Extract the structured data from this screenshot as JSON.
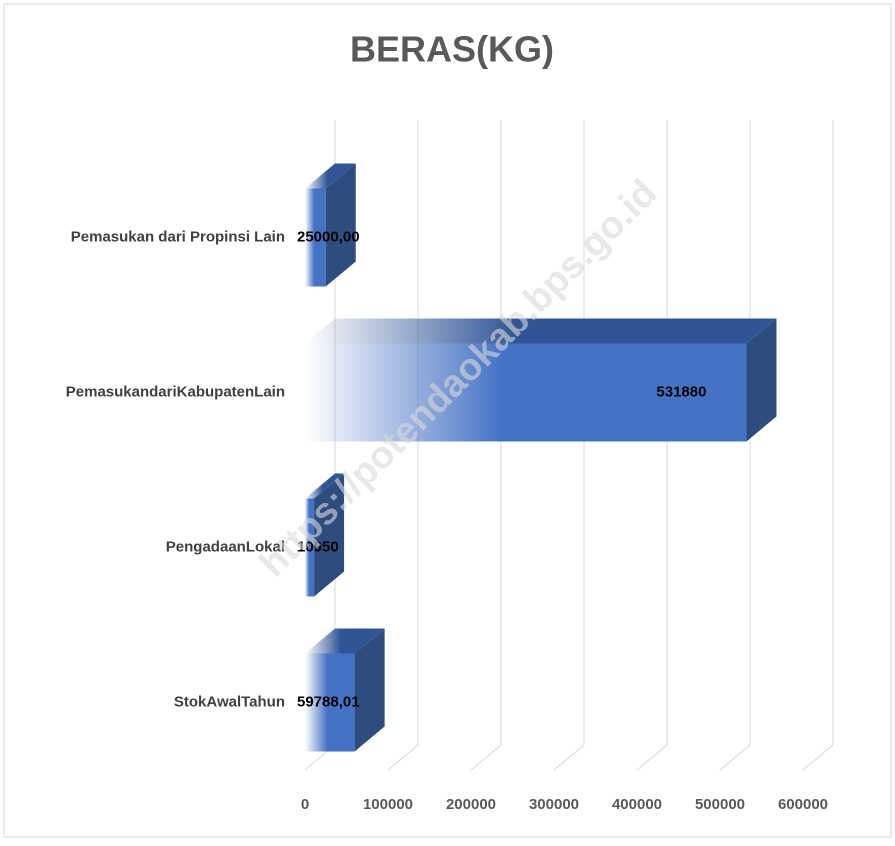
{
  "chart_data": {
    "type": "bar3d_horizontal",
    "title": "BERAS(KG)",
    "watermark": "https://potendaokab.bps.go.id",
    "categories": [
      "Pemasukan dari Propinsi Lain",
      "PemasukandariKabupatenLain",
      "PengadaanLokal",
      "StokAwalTahun"
    ],
    "values": [
      25000,
      531880,
      10950,
      59788.01
    ],
    "value_labels": [
      "25000,00",
      "531880",
      "10950",
      "59788,01"
    ],
    "color": "#4472c4",
    "xlim": [
      0,
      600000
    ],
    "xticks": [
      0,
      100000,
      200000,
      300000,
      400000,
      500000,
      600000
    ],
    "grid": true
  }
}
